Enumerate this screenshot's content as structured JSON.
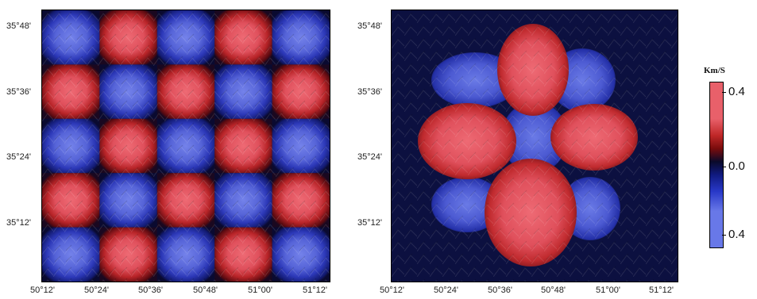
{
  "map_left": {
    "y_labels": [
      "35°48'",
      "35°36'",
      "35°24'",
      "35°12'"
    ],
    "x_labels": [
      "50°12'",
      "50°24'",
      "50°36'",
      "50°48'",
      "51°00'",
      "51°12'"
    ],
    "pattern": "checkerboard",
    "rows": 5,
    "cols": 5
  },
  "map_right": {
    "y_labels": [
      "35°48'",
      "35°36'",
      "35°24'",
      "35°12'"
    ],
    "x_labels": [
      "50°12'",
      "50°24'",
      "50°36'",
      "50°48'",
      "51°00'",
      "51°12'"
    ],
    "pattern": "recovered-anomalies"
  },
  "colorbar": {
    "title": "Km/S",
    "ticks": [
      "0.4",
      "0.0",
      "0.4"
    ],
    "colors": {
      "positive_high": "#e8606a",
      "positive_mid": "#c02828",
      "positive_dark": "#7a0c0c",
      "zero": "#0a0a2a",
      "negative_dark": "#101a80",
      "negative_mid": "#2838c8",
      "negative_high": "#6878e8"
    }
  }
}
